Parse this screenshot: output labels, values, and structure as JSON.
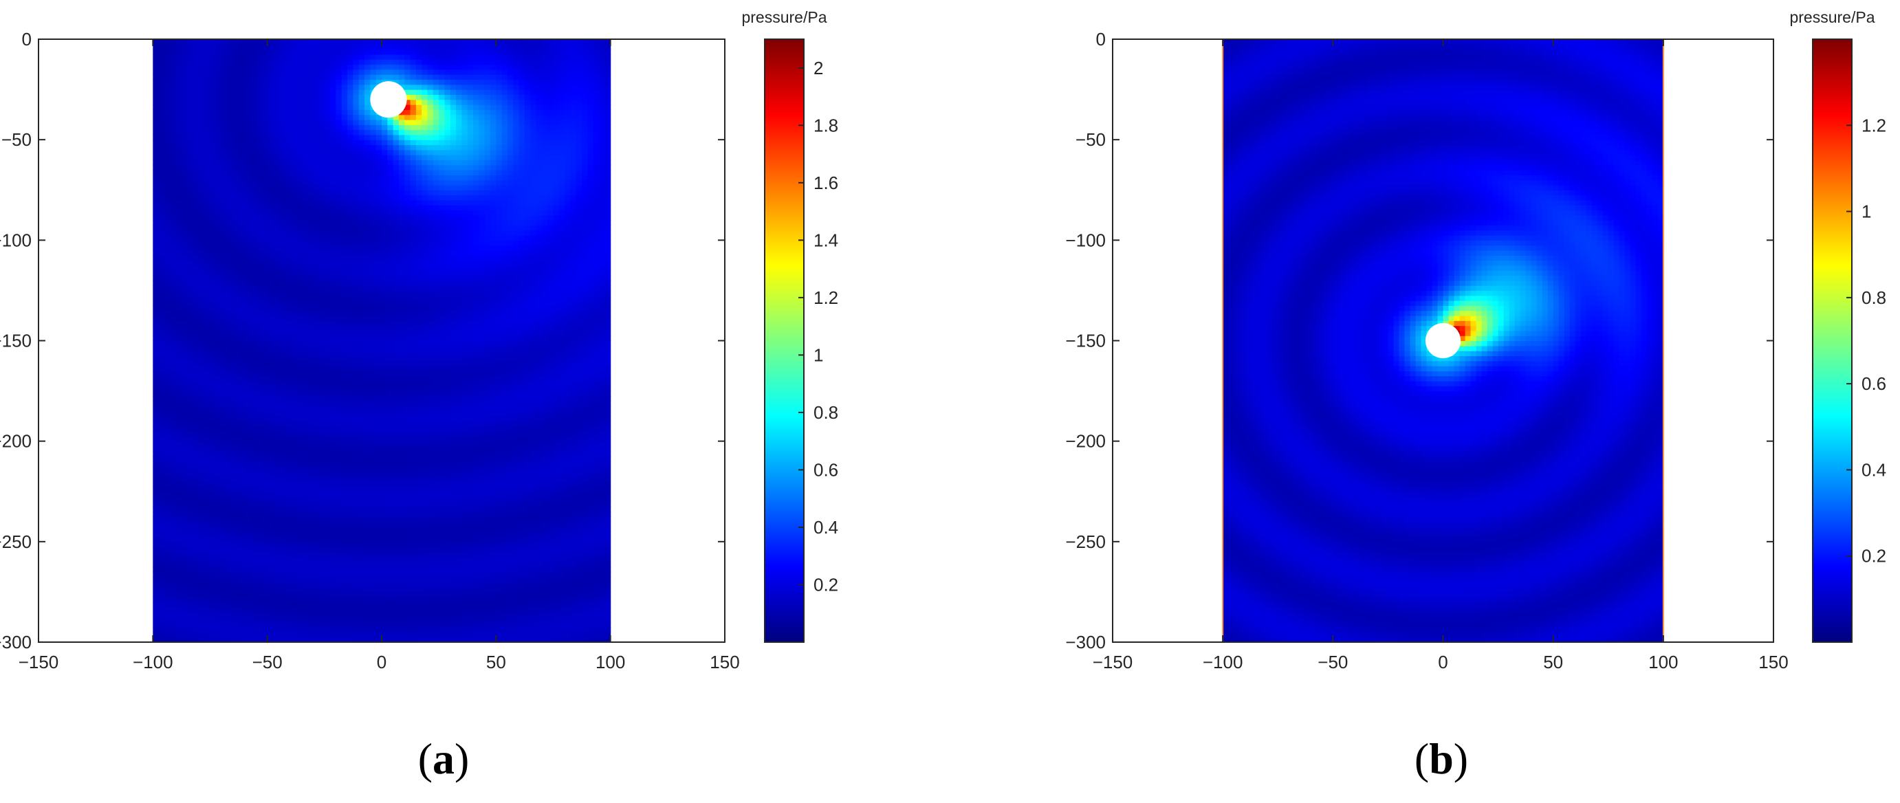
{
  "chart_data": [
    {
      "type": "heatmap",
      "panel_label": [
        "(",
        "a",
        ")"
      ],
      "title": "",
      "xlabel": "",
      "ylabel": "",
      "xlim": [
        -150,
        150
      ],
      "ylim": [
        -300,
        0
      ],
      "x_ticks": [
        -150,
        -100,
        -50,
        0,
        50,
        100,
        150
      ],
      "y_ticks": [
        0,
        -50,
        -100,
        -150,
        -200,
        -250,
        -300
      ],
      "field_x_range": [
        -100,
        100
      ],
      "field_y_range": [
        -300,
        0
      ],
      "colormap": "jet",
      "colorbar": {
        "label": "pressure/Pa",
        "range": [
          0,
          2.1
        ],
        "ticks": [
          0.2,
          0.4,
          0.6,
          0.8,
          1,
          1.2,
          1.4,
          1.6,
          1.8,
          2
        ],
        "tick_labels": [
          "0.2",
          "0.4",
          "0.6",
          "0.8",
          "1",
          "1.2",
          "1.4",
          "1.6",
          "1.8",
          "2"
        ]
      },
      "source": {
        "x": 3,
        "y": -30,
        "radius": 8,
        "max_pressure": 2.1
      },
      "beam_direction_deg": -30,
      "background_pressure": 0.12
    },
    {
      "type": "heatmap",
      "panel_label": [
        "(",
        "b",
        ")"
      ],
      "title": "",
      "xlabel": "",
      "ylabel": "",
      "xlim": [
        -150,
        150
      ],
      "ylim": [
        -300,
        0
      ],
      "x_ticks": [
        -150,
        -100,
        -50,
        0,
        50,
        100,
        150
      ],
      "y_ticks": [
        0,
        -50,
        -100,
        -150,
        -200,
        -250,
        -300
      ],
      "field_x_range": [
        -100,
        100
      ],
      "field_y_range": [
        -300,
        0
      ],
      "colormap": "jet",
      "colorbar": {
        "label": "pressure/Pa",
        "range": [
          0,
          1.4
        ],
        "ticks": [
          0.2,
          0.4,
          0.6,
          0.8,
          1,
          1.2
        ],
        "tick_labels": [
          "0.2",
          "0.4",
          "0.6",
          "0.8",
          "1",
          "1.2"
        ]
      },
      "source": {
        "x": 0,
        "y": -150,
        "radius": 8,
        "max_pressure": 1.4
      },
      "beam_direction_deg": 35,
      "background_pressure": 0.1
    }
  ]
}
